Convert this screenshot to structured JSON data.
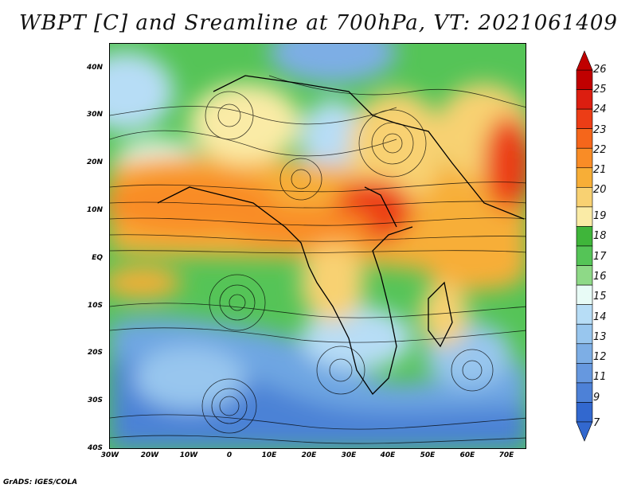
{
  "title": "WBPT [C] and Sreamline at 700hPa, VT: 2021061409",
  "map": {
    "name": "Wet-bulb potential temperature and streamlines, 700 hPa",
    "lat_labels": [
      "40N",
      "30N",
      "20N",
      "10N",
      "EQ",
      "10S",
      "20S",
      "30S",
      "40S"
    ],
    "lon_labels": [
      "30W",
      "20W",
      "10W",
      "0",
      "10E",
      "20E",
      "30E",
      "40E",
      "50E",
      "60E",
      "70E"
    ],
    "lat_range": [
      -40,
      44
    ],
    "lon_range": [
      -30,
      75
    ]
  },
  "colorbar": {
    "labels": [
      "26",
      "25",
      "24",
      "23",
      "22",
      "21",
      "20",
      "19",
      "18",
      "17",
      "16",
      "15",
      "14",
      "13",
      "12",
      "11",
      "9",
      "7"
    ],
    "colors": [
      "#c00000",
      "#dc1e10",
      "#ec3d16",
      "#f5661b",
      "#f98c26",
      "#f7ae37",
      "#f8d172",
      "#faeba6",
      "#3fb53a",
      "#55c457",
      "#8ed987",
      "#e8fbf6",
      "#b7ddf6",
      "#98c6ee",
      "#7daee5",
      "#6698df",
      "#4d81d7",
      "#3268cf"
    ]
  },
  "credit": "GrADS: IGES/COLA"
}
